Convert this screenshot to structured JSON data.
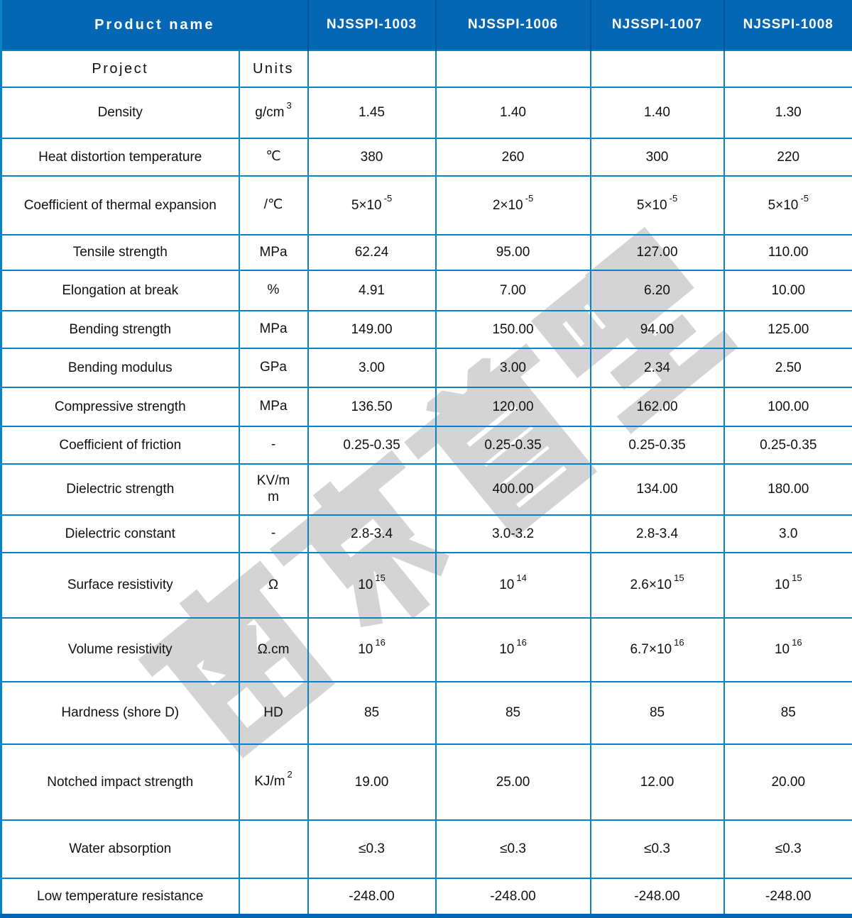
{
  "header": {
    "product_name_label": "Product name",
    "columns": [
      "NJSSPI-1003",
      "NJSSPI-1006",
      "NJSSPI-1007",
      "NJSSPI-1008"
    ]
  },
  "subheader": {
    "project_label": "Project",
    "units_label": "Units"
  },
  "rows": [
    {
      "property": "Density",
      "unit": "g/cm^3",
      "values": [
        "1.45",
        "1.40",
        "1.40",
        "1.30"
      ]
    },
    {
      "property": "Heat distortion temperature",
      "unit": "℃",
      "values": [
        "380",
        "260",
        "300",
        "220"
      ]
    },
    {
      "property": "Coefficient of thermal expansion",
      "unit": "/℃",
      "values": [
        "5×10^-5",
        "2×10^-5",
        "5×10^-5",
        "5×10^-5"
      ]
    },
    {
      "property": "Tensile strength",
      "unit": "MPa",
      "values": [
        "62.24",
        "95.00",
        "127.00",
        "110.00"
      ]
    },
    {
      "property": "Elongation at break",
      "unit": "%",
      "values": [
        "4.91",
        "7.00",
        "6.20",
        "10.00"
      ]
    },
    {
      "property": "Bending strength",
      "unit": "MPa",
      "values": [
        "149.00",
        "150.00",
        "94.00",
        "125.00"
      ]
    },
    {
      "property": "Bending modulus",
      "unit": "GPa",
      "values": [
        "3.00",
        "3.00",
        "2.34",
        "2.50"
      ]
    },
    {
      "property": "Compressive strength",
      "unit": "MPa",
      "values": [
        "136.50",
        "120.00",
        "162.00",
        "100.00"
      ]
    },
    {
      "property": "Coefficient of friction",
      "unit": "-",
      "values": [
        "0.25-0.35",
        "0.25-0.35",
        "0.25-0.35",
        "0.25-0.35"
      ]
    },
    {
      "property": "Dielectric strength",
      "unit": "KV/m\nm",
      "values": [
        "",
        "400.00",
        "134.00",
        "180.00"
      ]
    },
    {
      "property": "Dielectric constant",
      "unit": "-",
      "values": [
        "2.8-3.4",
        "3.0-3.2",
        "2.8-3.4",
        "3.0"
      ]
    },
    {
      "property": "Surface resistivity",
      "unit": "Ω",
      "values": [
        "10^15",
        "10^14",
        "2.6×10^15",
        "10^15"
      ]
    },
    {
      "property": "Volume resistivity",
      "unit": "Ω.cm",
      "values": [
        "10^16",
        "10^16",
        "6.7×10^16",
        "10^16"
      ]
    },
    {
      "property": "Hardness (shore D)",
      "unit": "HD",
      "values": [
        "85",
        "85",
        "85",
        "85"
      ]
    },
    {
      "property": "Notched impact strength",
      "unit": "KJ/m^2",
      "values": [
        "19.00",
        "25.00",
        "12.00",
        "20.00"
      ]
    },
    {
      "property": "Water absorption",
      "unit": "",
      "values": [
        "≤0.3",
        "≤0.3",
        "≤0.3",
        "≤0.3"
      ]
    },
    {
      "property": "Low temperature resistance",
      "unit": "",
      "values": [
        "-248.00",
        "-248.00",
        "-248.00",
        "-248.00"
      ]
    }
  ],
  "watermark": {
    "text": "南京首塑"
  },
  "colors": {
    "header_bg": "#0566b4",
    "header_text": "#ffffff",
    "grid_border": "#0a83c6",
    "watermark": "#d4d4d4",
    "body_text": "#111111"
  }
}
